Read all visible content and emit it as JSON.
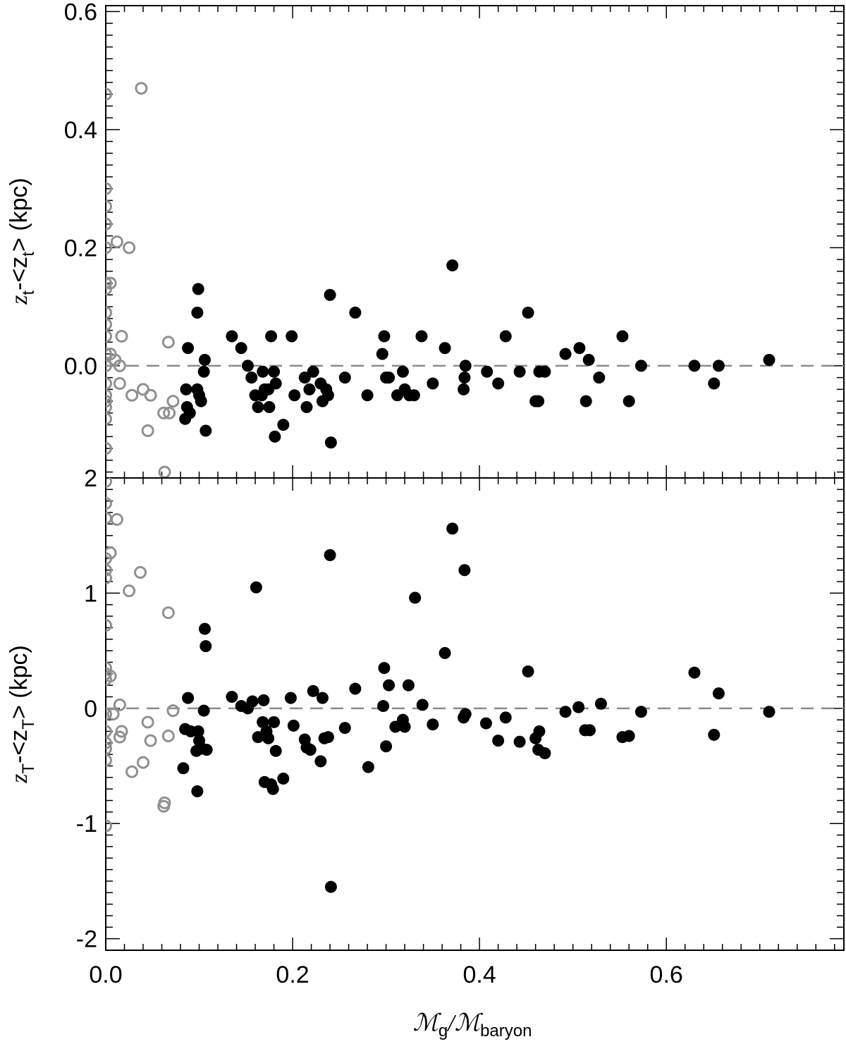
{
  "chart_data": [
    {
      "type": "scatter",
      "panel": "top",
      "ylabel": {
        "main": "z",
        "sub1": "t",
        "mid": "-<z",
        "sub2": "t",
        "tail": "> (kpc)"
      },
      "xlim": [
        0.0,
        0.79
      ],
      "ylim": [
        -0.19,
        0.61
      ],
      "ytick_labels": [
        "0.0",
        "0.2",
        "0.4",
        "0.6"
      ],
      "ytick_values": [
        0.0,
        0.2,
        0.4,
        0.6
      ],
      "reference_line": 0.0,
      "series": [
        {
          "style": "open-gray",
          "color": "#909090",
          "points": [
            [
              0.0,
              0.46
            ],
            [
              0.0,
              0.3
            ],
            [
              0.0,
              0.27
            ],
            [
              0.0,
              0.24
            ],
            [
              0.0,
              0.2
            ],
            [
              0.0,
              0.14
            ],
            [
              0.0,
              0.13
            ],
            [
              0.0,
              0.09
            ],
            [
              0.0,
              0.07
            ],
            [
              0.0,
              0.05
            ],
            [
              0.0,
              0.02
            ],
            [
              0.0,
              0.0
            ],
            [
              0.0,
              -0.03
            ],
            [
              0.0,
              -0.05
            ],
            [
              0.0,
              -0.06
            ],
            [
              0.0,
              -0.07
            ],
            [
              0.0,
              -0.09
            ],
            [
              0.0,
              -0.14
            ],
            [
              0.005,
              0.14
            ],
            [
              0.005,
              0.02
            ],
            [
              0.01,
              0.01
            ],
            [
              0.012,
              0.21
            ],
            [
              0.015,
              0.0
            ],
            [
              0.015,
              -0.03
            ],
            [
              0.017,
              0.05
            ],
            [
              0.025,
              0.2
            ],
            [
              0.028,
              -0.05
            ],
            [
              0.038,
              0.47
            ],
            [
              0.04,
              -0.04
            ],
            [
              0.045,
              -0.11
            ],
            [
              0.048,
              -0.05
            ],
            [
              0.062,
              -0.08
            ],
            [
              0.063,
              -0.18
            ],
            [
              0.068,
              -0.08
            ],
            [
              0.067,
              0.04
            ],
            [
              0.072,
              -0.06
            ]
          ]
        },
        {
          "style": "filled-black",
          "color": "#000000",
          "points": [
            [
              0.085,
              -0.09
            ],
            [
              0.086,
              -0.04
            ],
            [
              0.087,
              -0.07
            ],
            [
              0.088,
              0.03
            ],
            [
              0.09,
              -0.08
            ],
            [
              0.098,
              -0.04
            ],
            [
              0.098,
              0.09
            ],
            [
              0.099,
              0.13
            ],
            [
              0.1,
              -0.05
            ],
            [
              0.102,
              -0.06
            ],
            [
              0.105,
              -0.01
            ],
            [
              0.106,
              0.01
            ],
            [
              0.107,
              -0.11
            ],
            [
              0.135,
              0.05
            ],
            [
              0.145,
              0.03
            ],
            [
              0.152,
              0.0
            ],
            [
              0.156,
              -0.02
            ],
            [
              0.16,
              -0.05
            ],
            [
              0.163,
              -0.07
            ],
            [
              0.167,
              -0.05
            ],
            [
              0.168,
              -0.01
            ],
            [
              0.17,
              -0.04
            ],
            [
              0.174,
              -0.04
            ],
            [
              0.175,
              -0.07
            ],
            [
              0.177,
              0.05
            ],
            [
              0.18,
              -0.01
            ],
            [
              0.181,
              -0.12
            ],
            [
              0.182,
              -0.03
            ],
            [
              0.19,
              -0.1
            ],
            [
              0.199,
              0.05
            ],
            [
              0.202,
              -0.05
            ],
            [
              0.213,
              -0.02
            ],
            [
              0.215,
              -0.07
            ],
            [
              0.218,
              -0.04
            ],
            [
              0.222,
              -0.01
            ],
            [
              0.23,
              -0.03
            ],
            [
              0.232,
              -0.06
            ],
            [
              0.236,
              -0.04
            ],
            [
              0.238,
              -0.05
            ],
            [
              0.24,
              0.12
            ],
            [
              0.241,
              -0.13
            ],
            [
              0.256,
              -0.02
            ],
            [
              0.267,
              0.09
            ],
            [
              0.28,
              -0.05
            ],
            [
              0.296,
              0.02
            ],
            [
              0.298,
              0.05
            ],
            [
              0.3,
              -0.02
            ],
            [
              0.303,
              -0.02
            ],
            [
              0.312,
              -0.05
            ],
            [
              0.318,
              -0.01
            ],
            [
              0.32,
              -0.04
            ],
            [
              0.325,
              -0.05
            ],
            [
              0.33,
              -0.05
            ],
            [
              0.338,
              0.05
            ],
            [
              0.35,
              -0.03
            ],
            [
              0.363,
              0.03
            ],
            [
              0.371,
              0.17
            ],
            [
              0.383,
              -0.04
            ],
            [
              0.384,
              -0.02
            ],
            [
              0.385,
              0.0
            ],
            [
              0.408,
              -0.01
            ],
            [
              0.42,
              -0.03
            ],
            [
              0.428,
              0.05
            ],
            [
              0.443,
              -0.01
            ],
            [
              0.452,
              0.09
            ],
            [
              0.46,
              -0.06
            ],
            [
              0.463,
              -0.06
            ],
            [
              0.464,
              -0.01
            ],
            [
              0.47,
              -0.01
            ],
            [
              0.492,
              0.02
            ],
            [
              0.507,
              0.03
            ],
            [
              0.514,
              -0.06
            ],
            [
              0.517,
              0.01
            ],
            [
              0.528,
              -0.02
            ],
            [
              0.553,
              0.05
            ],
            [
              0.56,
              -0.06
            ],
            [
              0.573,
              0.0
            ],
            [
              0.63,
              0.0
            ],
            [
              0.651,
              -0.03
            ],
            [
              0.656,
              0.0
            ],
            [
              0.71,
              0.01
            ]
          ]
        }
      ]
    },
    {
      "type": "scatter",
      "panel": "bottom",
      "xlabel": {
        "m1": "ℳ",
        "sub1": "g",
        "slash": "/",
        "m2": "ℳ",
        "sub2": "baryon"
      },
      "ylabel": {
        "main": "z",
        "sub1": "T",
        "mid": "-<z",
        "sub2": "T",
        "tail": "> (kpc)"
      },
      "xlim": [
        0.0,
        0.79
      ],
      "ylim": [
        -2.1,
        2.0
      ],
      "xtick_labels": [
        "0.0",
        "0.2",
        "0.4",
        "0.6"
      ],
      "xtick_values": [
        0.0,
        0.2,
        0.4,
        0.6
      ],
      "ytick_labels": [
        "-2",
        "-1",
        "0",
        "1",
        "2"
      ],
      "ytick_values": [
        -2,
        -1,
        0,
        1,
        2
      ],
      "reference_line": 0.0,
      "series": [
        {
          "style": "open-gray",
          "color": "#909090",
          "points": [
            [
              0.0,
              1.97
            ],
            [
              0.0,
              1.78
            ],
            [
              0.0,
              1.65
            ],
            [
              0.0,
              1.3
            ],
            [
              0.0,
              1.2
            ],
            [
              0.0,
              1.13
            ],
            [
              0.0,
              0.72
            ],
            [
              0.0,
              0.35
            ],
            [
              0.0,
              0.3
            ],
            [
              0.0,
              0.25
            ],
            [
              0.0,
              -0.05
            ],
            [
              0.0,
              -0.2
            ],
            [
              0.0,
              -0.3
            ],
            [
              0.0,
              -0.35
            ],
            [
              0.0,
              -0.45
            ],
            [
              0.0,
              -1.02
            ],
            [
              0.005,
              1.35
            ],
            [
              0.005,
              0.28
            ],
            [
              0.008,
              -0.05
            ],
            [
              0.012,
              1.64
            ],
            [
              0.015,
              0.03
            ],
            [
              0.015,
              -0.25
            ],
            [
              0.017,
              -0.2
            ],
            [
              0.025,
              1.02
            ],
            [
              0.028,
              -0.55
            ],
            [
              0.037,
              1.18
            ],
            [
              0.04,
              -0.47
            ],
            [
              0.045,
              -0.12
            ],
            [
              0.048,
              -0.28
            ],
            [
              0.062,
              -0.85
            ],
            [
              0.063,
              -0.82
            ],
            [
              0.067,
              -0.24
            ],
            [
              0.067,
              0.83
            ],
            [
              0.072,
              -0.02
            ]
          ]
        },
        {
          "style": "filled-black",
          "color": "#000000",
          "points": [
            [
              0.083,
              -0.52
            ],
            [
              0.085,
              -0.18
            ],
            [
              0.088,
              0.09
            ],
            [
              0.091,
              -0.2
            ],
            [
              0.097,
              -0.37
            ],
            [
              0.098,
              -0.72
            ],
            [
              0.099,
              -0.2
            ],
            [
              0.1,
              -0.28
            ],
            [
              0.103,
              -0.35
            ],
            [
              0.105,
              -0.02
            ],
            [
              0.106,
              0.69
            ],
            [
              0.107,
              0.54
            ],
            [
              0.108,
              -0.36
            ],
            [
              0.135,
              0.1
            ],
            [
              0.145,
              0.02
            ],
            [
              0.152,
              0.0
            ],
            [
              0.157,
              0.06
            ],
            [
              0.161,
              1.05
            ],
            [
              0.163,
              -0.25
            ],
            [
              0.168,
              -0.12
            ],
            [
              0.169,
              0.07
            ],
            [
              0.17,
              -0.64
            ],
            [
              0.172,
              -0.2
            ],
            [
              0.174,
              -0.26
            ],
            [
              0.177,
              -0.66
            ],
            [
              0.179,
              -0.7
            ],
            [
              0.18,
              -0.12
            ],
            [
              0.182,
              -0.37
            ],
            [
              0.19,
              -0.61
            ],
            [
              0.198,
              0.09
            ],
            [
              0.201,
              -0.15
            ],
            [
              0.213,
              -0.27
            ],
            [
              0.215,
              -0.34
            ],
            [
              0.219,
              -0.36
            ],
            [
              0.222,
              0.15
            ],
            [
              0.23,
              -0.46
            ],
            [
              0.232,
              0.09
            ],
            [
              0.234,
              -0.26
            ],
            [
              0.238,
              -0.25
            ],
            [
              0.24,
              1.33
            ],
            [
              0.241,
              -1.55
            ],
            [
              0.256,
              -0.17
            ],
            [
              0.267,
              0.17
            ],
            [
              0.281,
              -0.51
            ],
            [
              0.297,
              0.02
            ],
            [
              0.298,
              0.35
            ],
            [
              0.3,
              -0.33
            ],
            [
              0.303,
              0.2
            ],
            [
              0.31,
              -0.16
            ],
            [
              0.318,
              -0.1
            ],
            [
              0.32,
              -0.16
            ],
            [
              0.324,
              0.2
            ],
            [
              0.331,
              0.96
            ],
            [
              0.339,
              0.03
            ],
            [
              0.35,
              -0.14
            ],
            [
              0.363,
              0.48
            ],
            [
              0.371,
              1.56
            ],
            [
              0.383,
              -0.08
            ],
            [
              0.384,
              1.2
            ],
            [
              0.385,
              -0.05
            ],
            [
              0.407,
              -0.13
            ],
            [
              0.42,
              -0.28
            ],
            [
              0.428,
              -0.08
            ],
            [
              0.443,
              -0.29
            ],
            [
              0.452,
              0.32
            ],
            [
              0.46,
              -0.26
            ],
            [
              0.463,
              -0.36
            ],
            [
              0.464,
              -0.2
            ],
            [
              0.47,
              -0.39
            ],
            [
              0.492,
              -0.03
            ],
            [
              0.506,
              0.01
            ],
            [
              0.513,
              -0.19
            ],
            [
              0.518,
              -0.19
            ],
            [
              0.53,
              0.04
            ],
            [
              0.553,
              -0.25
            ],
            [
              0.56,
              -0.24
            ],
            [
              0.573,
              -0.03
            ],
            [
              0.63,
              0.31
            ],
            [
              0.651,
              -0.23
            ],
            [
              0.656,
              0.13
            ],
            [
              0.71,
              -0.03
            ]
          ]
        }
      ]
    }
  ]
}
